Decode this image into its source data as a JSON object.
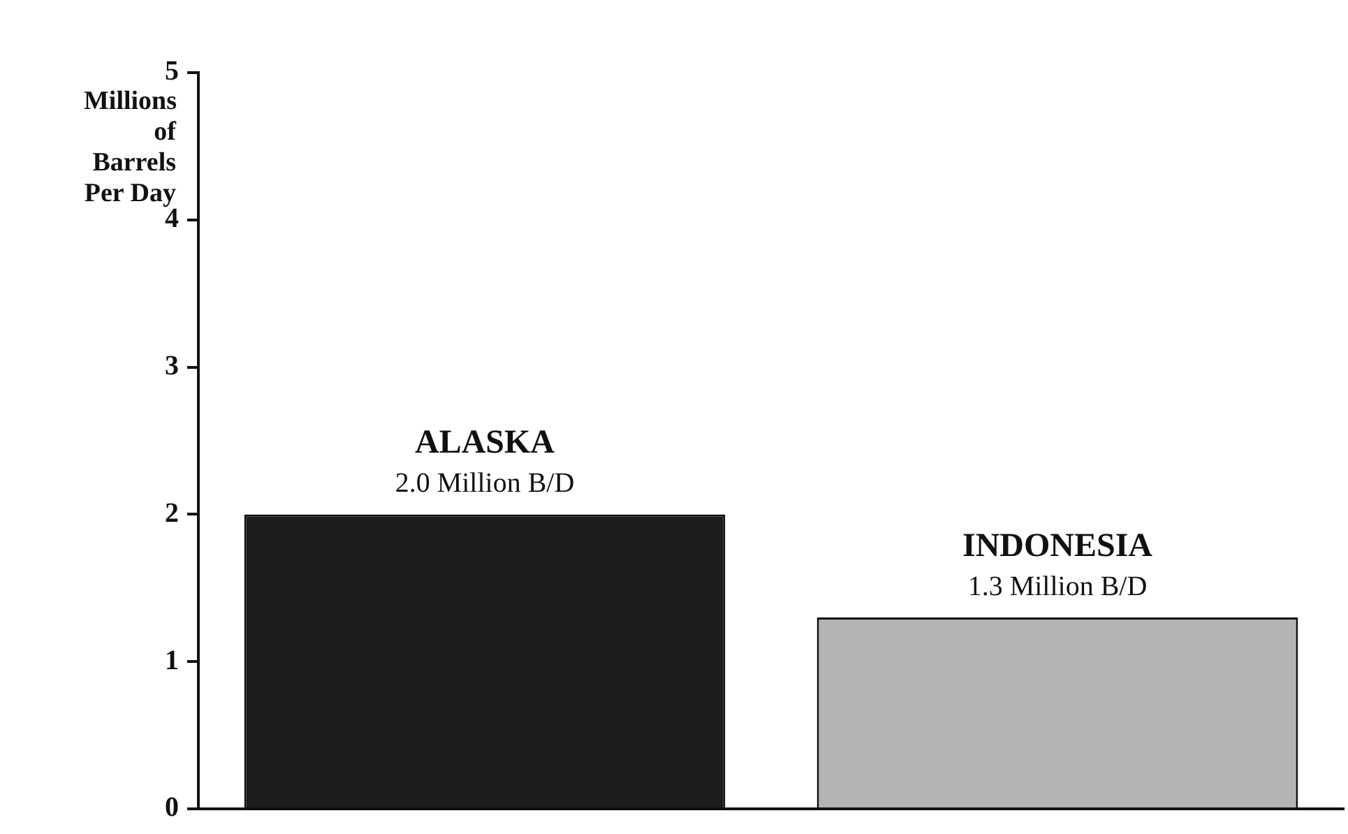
{
  "chart_data": {
    "type": "bar",
    "ylabel": "Millions of Barrels Per Day",
    "categories": [
      "ALASKA",
      "INDONESIA"
    ],
    "values": [
      2.0,
      1.3
    ],
    "colors": [
      "#1c1c1c",
      "#b4b4b4"
    ],
    "value_labels": [
      "2.0 Million B/D",
      "1.3 Million B/D"
    ],
    "ylim": [
      0,
      5
    ],
    "yticks": [
      0,
      1,
      2,
      3,
      4,
      5
    ],
    "grid": false,
    "legend": false
  }
}
